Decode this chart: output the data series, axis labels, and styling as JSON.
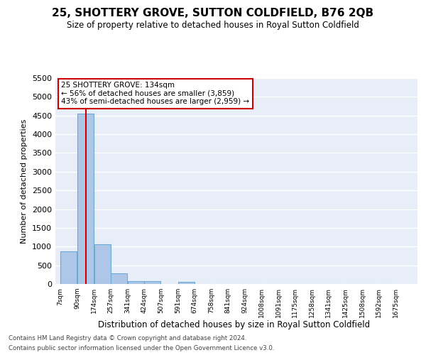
{
  "title": "25, SHOTTERY GROVE, SUTTON COLDFIELD, B76 2QB",
  "subtitle": "Size of property relative to detached houses in Royal Sutton Coldfield",
  "xlabel": "Distribution of detached houses by size in Royal Sutton Coldfield",
  "ylabel": "Number of detached properties",
  "bar_color": "#aec6e8",
  "bar_edge_color": "#6aaad4",
  "bg_color": "#e8eef8",
  "vline_color": "#cc0000",
  "property_size_sqm": 134,
  "annotation_text": "25 SHOTTERY GROVE: 134sqm\n← 56% of detached houses are smaller (3,859)\n43% of semi-detached houses are larger (2,959) →",
  "bin_starts": [
    7,
    90,
    174,
    257,
    341,
    424,
    507,
    591,
    674,
    758,
    841,
    924,
    1008,
    1091,
    1175,
    1258,
    1341,
    1425,
    1508,
    1592
  ],
  "bin_width": 83,
  "last_edge": 1675,
  "values": [
    880,
    4560,
    1060,
    290,
    80,
    80,
    0,
    50,
    0,
    0,
    0,
    0,
    0,
    0,
    0,
    0,
    0,
    0,
    0,
    0
  ],
  "tick_labels": [
    "7sqm",
    "90sqm",
    "174sqm",
    "257sqm",
    "341sqm",
    "424sqm",
    "507sqm",
    "591sqm",
    "674sqm",
    "758sqm",
    "841sqm",
    "924sqm",
    "1008sqm",
    "1091sqm",
    "1175sqm",
    "1258sqm",
    "1341sqm",
    "1425sqm",
    "1508sqm",
    "1592sqm",
    "1675sqm"
  ],
  "ylim_max": 5500,
  "yticks": [
    0,
    500,
    1000,
    1500,
    2000,
    2500,
    3000,
    3500,
    4000,
    4500,
    5000,
    5500
  ],
  "footnote1": "Contains HM Land Registry data © Crown copyright and database right 2024.",
  "footnote2": "Contains public sector information licensed under the Open Government Licence v3.0."
}
